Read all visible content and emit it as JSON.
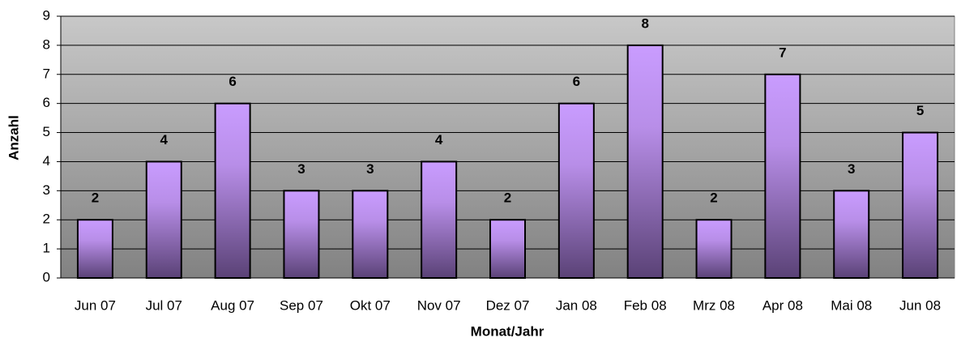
{
  "chart_data": {
    "type": "bar",
    "x_label": "Monat/Jahr",
    "y_label": "Anzahl",
    "categories": [
      "Jun 07",
      "Jul 07",
      "Aug 07",
      "Sep 07",
      "Okt 07",
      "Nov 07",
      "Dez 07",
      "Jan 08",
      "Feb 08",
      "Mrz 08",
      "Apr 08",
      "Mai 08",
      "Jun 08"
    ],
    "values": [
      2,
      4,
      6,
      3,
      3,
      4,
      2,
      6,
      8,
      2,
      7,
      3,
      5
    ],
    "color": "#c99cff",
    "ylim": [
      0,
      9
    ],
    "yticks": [
      0,
      1,
      2,
      3,
      4,
      5,
      6,
      7,
      8,
      9
    ],
    "grid": true
  }
}
